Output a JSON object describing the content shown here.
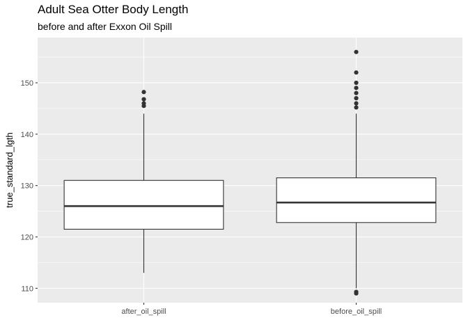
{
  "chart_data": {
    "type": "boxplot",
    "title": "Adult Sea Otter Body Length",
    "subtitle": "before and after Exxon Oil Spill",
    "xlabel": "",
    "ylabel": "true_standard_lgth",
    "ylim": [
      107.2,
      158.8
    ],
    "yticks": [
      110,
      120,
      130,
      140,
      150
    ],
    "categories": [
      "after_oil_spill",
      "before_oil_spill"
    ],
    "boxes": [
      {
        "category": "after_oil_spill",
        "whisker_low": 113,
        "q1": 121.5,
        "median": 126,
        "q3": 131,
        "whisker_high": 144,
        "outliers": [
          145.5,
          146,
          146.8,
          148.2
        ]
      },
      {
        "category": "before_oil_spill",
        "whisker_low": 110,
        "q1": 122.8,
        "median": 126.7,
        "q3": 131.5,
        "whisker_high": 144,
        "outliers": [
          109,
          109.3,
          145.2,
          146,
          147,
          148,
          149,
          150,
          152,
          156
        ]
      }
    ],
    "colors": {
      "panel": "#ebebeb",
      "grid_major": "#ffffff",
      "box_fill": "#ffffff",
      "box_line": "#333333",
      "point": "#333333",
      "tick_text": "#4d4d4d"
    },
    "grid": true,
    "legend": "none"
  }
}
